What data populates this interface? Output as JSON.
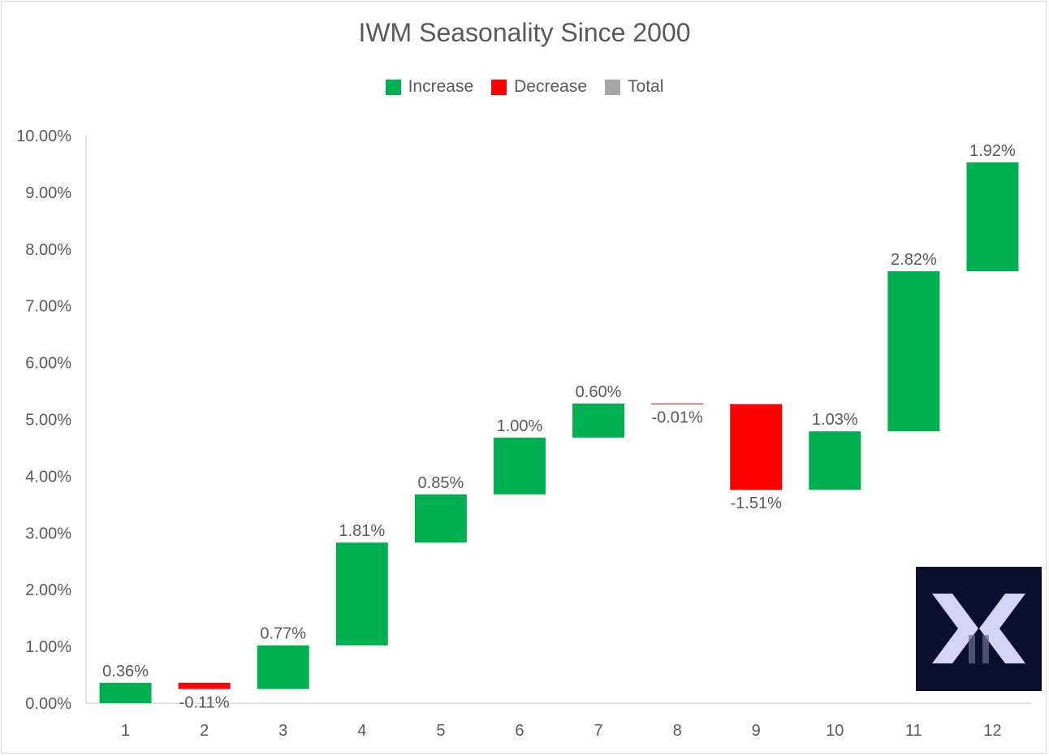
{
  "chart_data": {
    "type": "waterfall",
    "title": "IWM Seasonality Since 2000",
    "legend": [
      {
        "label": "Increase",
        "color": "#00b050"
      },
      {
        "label": "Decrease",
        "color": "#ff0000"
      },
      {
        "label": "Total",
        "color": "#a6a6a6"
      }
    ],
    "categories": [
      "1",
      "2",
      "3",
      "4",
      "5",
      "6",
      "7",
      "8",
      "9",
      "10",
      "11",
      "12"
    ],
    "values": [
      0.36,
      -0.11,
      0.77,
      1.81,
      0.85,
      1.0,
      0.6,
      -0.01,
      -1.51,
      1.03,
      2.82,
      1.92
    ],
    "data_labels": [
      "0.36%",
      "-0.11%",
      "0.77%",
      "1.81%",
      "0.85%",
      "1.00%",
      "0.60%",
      "-0.01%",
      "-1.51%",
      "1.03%",
      "2.82%",
      "1.92%"
    ],
    "y_ticks": [
      0,
      1,
      2,
      3,
      4,
      5,
      6,
      7,
      8,
      9,
      10
    ],
    "y_tick_labels": [
      "0.00%",
      "1.00%",
      "2.00%",
      "3.00%",
      "4.00%",
      "5.00%",
      "6.00%",
      "7.00%",
      "8.00%",
      "9.00%",
      "10.00%"
    ],
    "ylim": [
      0,
      10
    ],
    "xlabel": "",
    "ylabel": "",
    "legend_position": "top-center",
    "grid": false
  },
  "logo": {
    "name": "logo-x-icon",
    "colors": {
      "background": "#0b0f2e",
      "mark": "#d4d4f7"
    }
  }
}
